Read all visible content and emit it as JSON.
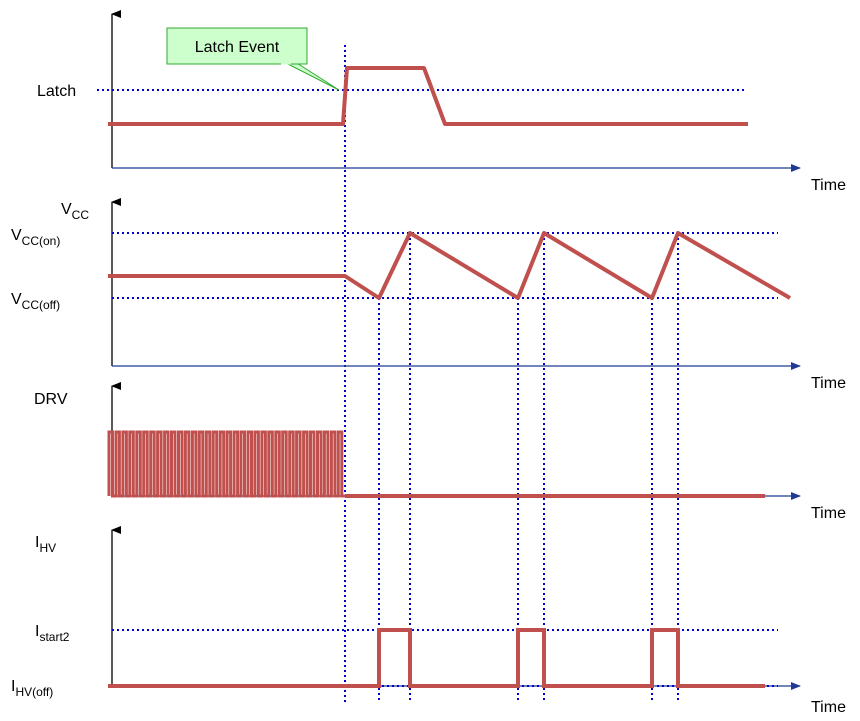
{
  "annotation": {
    "text": "Latch Event"
  },
  "panels": [
    {
      "id": "latch",
      "y_label": "",
      "x_label": "Time",
      "levels": [
        {
          "label": "Latch",
          "main": "Latch",
          "sub": ""
        }
      ]
    },
    {
      "id": "vcc",
      "y_label": {
        "main": "V",
        "sub": "CC"
      },
      "x_label": "Time",
      "levels": [
        {
          "label": "VCC(on)",
          "main": "V",
          "sub": "CC(on)"
        },
        {
          "label": "VCC(off)",
          "main": "V",
          "sub": "CC(off)"
        }
      ]
    },
    {
      "id": "drv",
      "y_label": {
        "main": "DRV",
        "sub": ""
      },
      "x_label": "Time",
      "levels": []
    },
    {
      "id": "ihv",
      "y_label": {
        "main": "I",
        "sub": "HV"
      },
      "x_label": "Time",
      "levels": [
        {
          "label": "Istart2",
          "main": "I",
          "sub": "start2"
        },
        {
          "label": "IHV(off)",
          "main": "I",
          "sub": "HV(off)"
        }
      ]
    }
  ],
  "colors": {
    "signal": "#c0504d",
    "reference": "#0000cc",
    "axis": "#000000",
    "callout_fill": "#ccffcc",
    "callout_border": "#33aa33"
  }
}
